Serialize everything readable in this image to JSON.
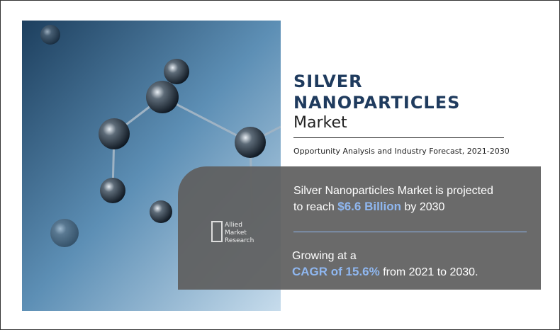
{
  "header": {
    "title_line1": "SILVER",
    "title_line2": "NANOPARTICLES",
    "title_line3": "Market",
    "subtitle": "Opportunity Analysis and Industry Forecast, 2021-2030"
  },
  "highlights": {
    "projection": {
      "text_before": "Silver Nanoparticles Market is projected",
      "text_mid": "to reach",
      "value": "$6.6 Billion",
      "text_after": "by 2030"
    },
    "growth": {
      "text_before": "Growing at a",
      "value": "CAGR of 15.6%",
      "text_after": "from 2021 to 2030."
    }
  },
  "logo": {
    "line1": "Allied",
    "line2": "Market",
    "line3": "Research"
  }
}
